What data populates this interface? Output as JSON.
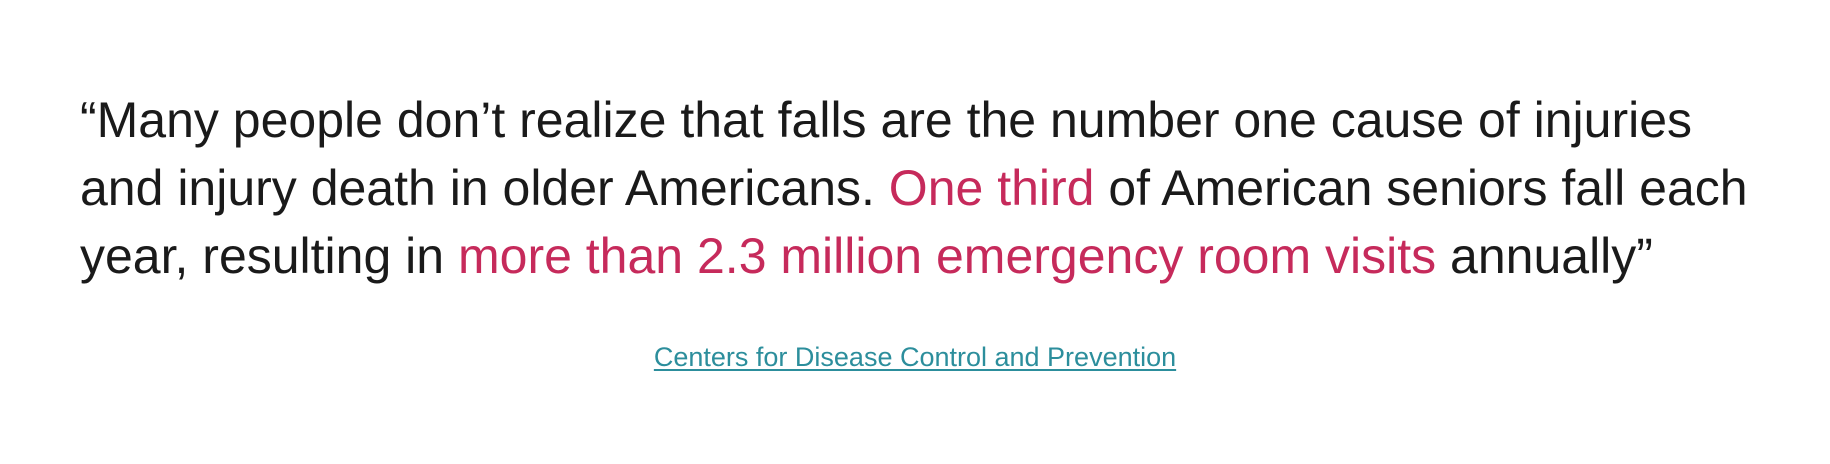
{
  "quote": {
    "part1": "“Many people don’t realize that falls are the number one cause of injuries and injury death in older Americans. ",
    "highlight1": "One third",
    "part2": " of American seniors fall each year, resulting in ",
    "highlight2": "more than 2.3 million emergency room visits",
    "part3": " annually”"
  },
  "source": {
    "label": "Centers for Disease Control and Prevention"
  },
  "colors": {
    "text": "#1a1a1a",
    "highlight": "#c62a5b",
    "link": "#2c8e9c",
    "background": "#ffffff"
  }
}
